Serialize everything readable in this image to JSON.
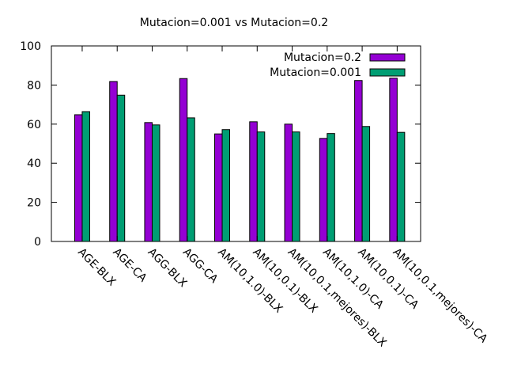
{
  "chart_data": {
    "type": "bar",
    "title": "Mutacion=0.001 vs Mutacion=0.2",
    "xlabel": "",
    "ylabel": "",
    "ylim": [
      0,
      100
    ],
    "yticks": [
      0,
      20,
      40,
      60,
      80,
      100
    ],
    "categories": [
      "AGE-BLX",
      "AGE-CA",
      "AGG-BLX",
      "AGG-CA",
      "AM(10,1.0)-BLX",
      "AM(10,0.1)-BLX",
      "AM(10,0.1,mejores)-BLX",
      "AM(10,1.0)-CA",
      "AM(10,0.1)-CA",
      "AM(10,0.1,mejores)-CA"
    ],
    "series": [
      {
        "name": "Mutacion=0.2",
        "color": "#9400d3",
        "values": [
          64.8,
          81.8,
          60.8,
          83.3,
          55.0,
          61.2,
          60.0,
          52.7,
          82.3,
          83.5
        ]
      },
      {
        "name": "Mutacion=0.001",
        "color": "#009e73",
        "values": [
          66.4,
          74.8,
          59.6,
          63.2,
          57.2,
          56.0,
          56.0,
          55.2,
          58.8,
          55.8
        ]
      }
    ],
    "legend_position": "top-right",
    "grid": false
  }
}
